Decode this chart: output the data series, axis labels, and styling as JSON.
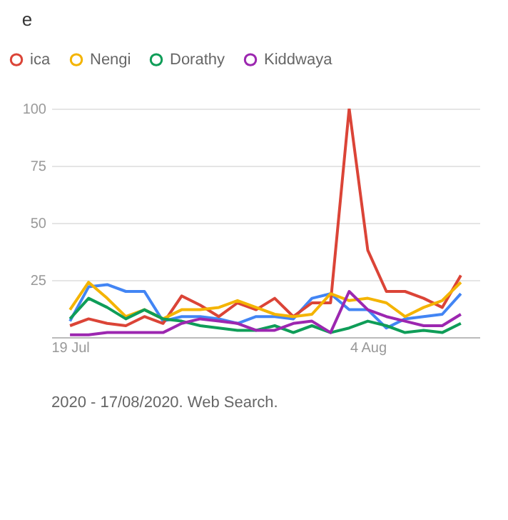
{
  "chart_data": {
    "type": "line",
    "title": "e",
    "x": [
      "2020-07-19",
      "2020-07-20",
      "2020-07-21",
      "2020-07-22",
      "2020-07-23",
      "2020-07-24",
      "2020-07-25",
      "2020-07-26",
      "2020-07-27",
      "2020-07-28",
      "2020-07-29",
      "2020-07-30",
      "2020-07-31",
      "2020-08-01",
      "2020-08-02",
      "2020-08-03",
      "2020-08-04",
      "2020-08-05",
      "2020-08-06",
      "2020-08-07",
      "2020-08-08",
      "2020-08-09"
    ],
    "series": [
      {
        "color": "#4285f4",
        "values": [
          7,
          22,
          23,
          20,
          20,
          7,
          9,
          9,
          8,
          6,
          9,
          9,
          8,
          17,
          19,
          12,
          12,
          4,
          8,
          9,
          10,
          19
        ]
      },
      {
        "name": "ica",
        "color": "#db4437",
        "values": [
          5,
          8,
          6,
          5,
          9,
          6,
          18,
          14,
          9,
          15,
          12,
          17,
          9,
          15,
          15,
          100,
          38,
          20,
          20,
          17,
          13,
          27
        ]
      },
      {
        "name": "Nengi",
        "color": "#f4b400",
        "values": [
          12,
          24,
          17,
          9,
          12,
          8,
          12,
          12,
          13,
          16,
          13,
          10,
          9,
          10,
          19,
          16,
          17,
          15,
          9,
          13,
          16,
          24
        ]
      },
      {
        "name": "Dorathy",
        "color": "#0f9d58",
        "values": [
          8,
          17,
          13,
          8,
          12,
          8,
          7,
          5,
          4,
          3,
          3,
          5,
          2,
          5,
          2,
          4,
          7,
          5,
          2,
          3,
          2,
          6
        ]
      },
      {
        "name": "Kiddwaya",
        "color": "#9c27b0",
        "values": [
          1,
          1,
          2,
          2,
          2,
          2,
          6,
          8,
          7,
          6,
          3,
          3,
          6,
          7,
          2,
          20,
          12,
          9,
          7,
          5,
          5,
          10
        ]
      }
    ],
    "xlim": [
      "2020-07-18",
      "2020-08-10"
    ],
    "xticks": [
      {
        "value": "2020-07-19",
        "label": "19 Jul"
      },
      {
        "value": "2020-08-04",
        "label": "4 Aug"
      }
    ],
    "ylim": [
      0,
      100
    ],
    "yticks": [
      25,
      50,
      75,
      100
    ],
    "grid": "y",
    "legend": "top left",
    "marker": "none",
    "line_style": "solid",
    "annotations": [
      "2020 - 17/08/2020. Web Search."
    ]
  }
}
